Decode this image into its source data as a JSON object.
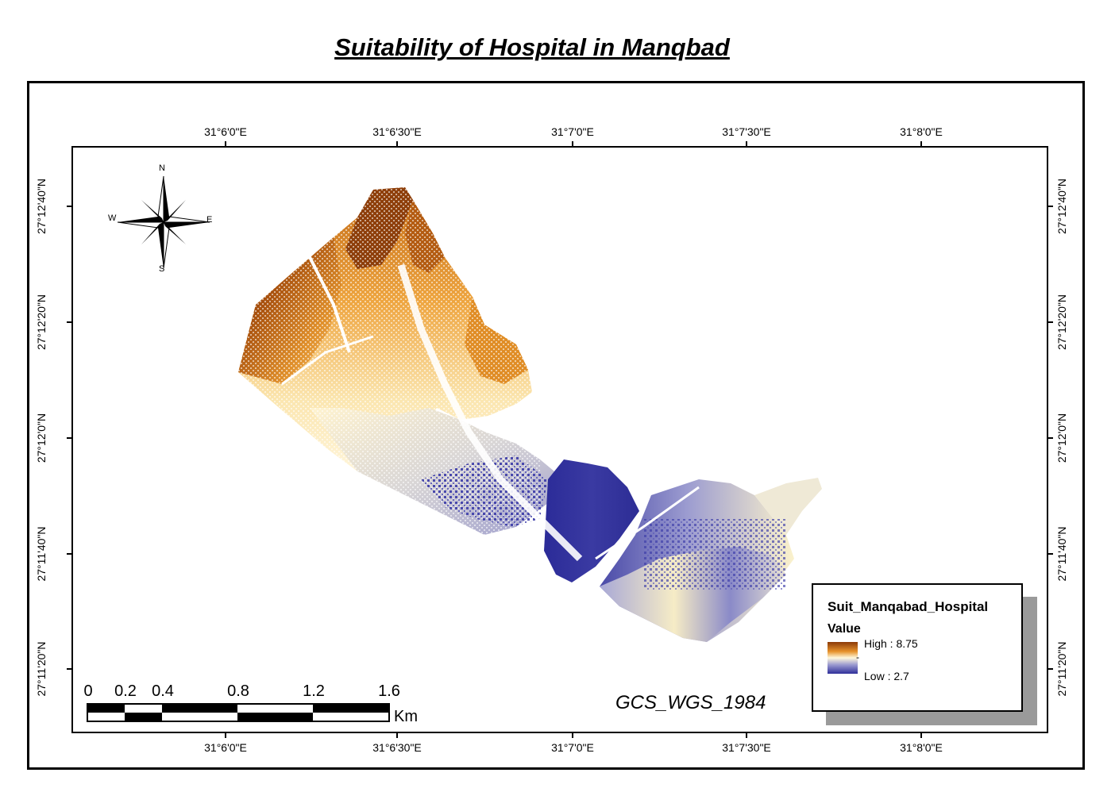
{
  "title": "Suitability of Hospital in Manqbad",
  "longitude_ticks": [
    "31°6'0\"E",
    "31°6'30\"E",
    "31°7'0\"E",
    "31°7'30\"E",
    "31°8'0\"E"
  ],
  "latitude_ticks": [
    "27°12'40\"N",
    "27°12'20\"N",
    "27°12'0\"N",
    "27°11'40\"N",
    "27°11'20\"N"
  ],
  "north_arrow": {
    "n": "N",
    "s": "S",
    "e": "E",
    "w": "W"
  },
  "legend": {
    "title": "Suit_Manqabad_Hospital",
    "value_label": "Value",
    "high": "High : 8.75",
    "dash": "-",
    "low": "Low : 2.7",
    "colors": {
      "high": "#8b3a08",
      "mid": "#fff8dc",
      "low": "#2f2f9a"
    }
  },
  "projection": "GCS_WGS_1984",
  "scale_bar": {
    "labels": [
      "0",
      "0.2",
      "0.4",
      "0.8",
      "1.2",
      "1.6"
    ],
    "unit": "Km"
  }
}
